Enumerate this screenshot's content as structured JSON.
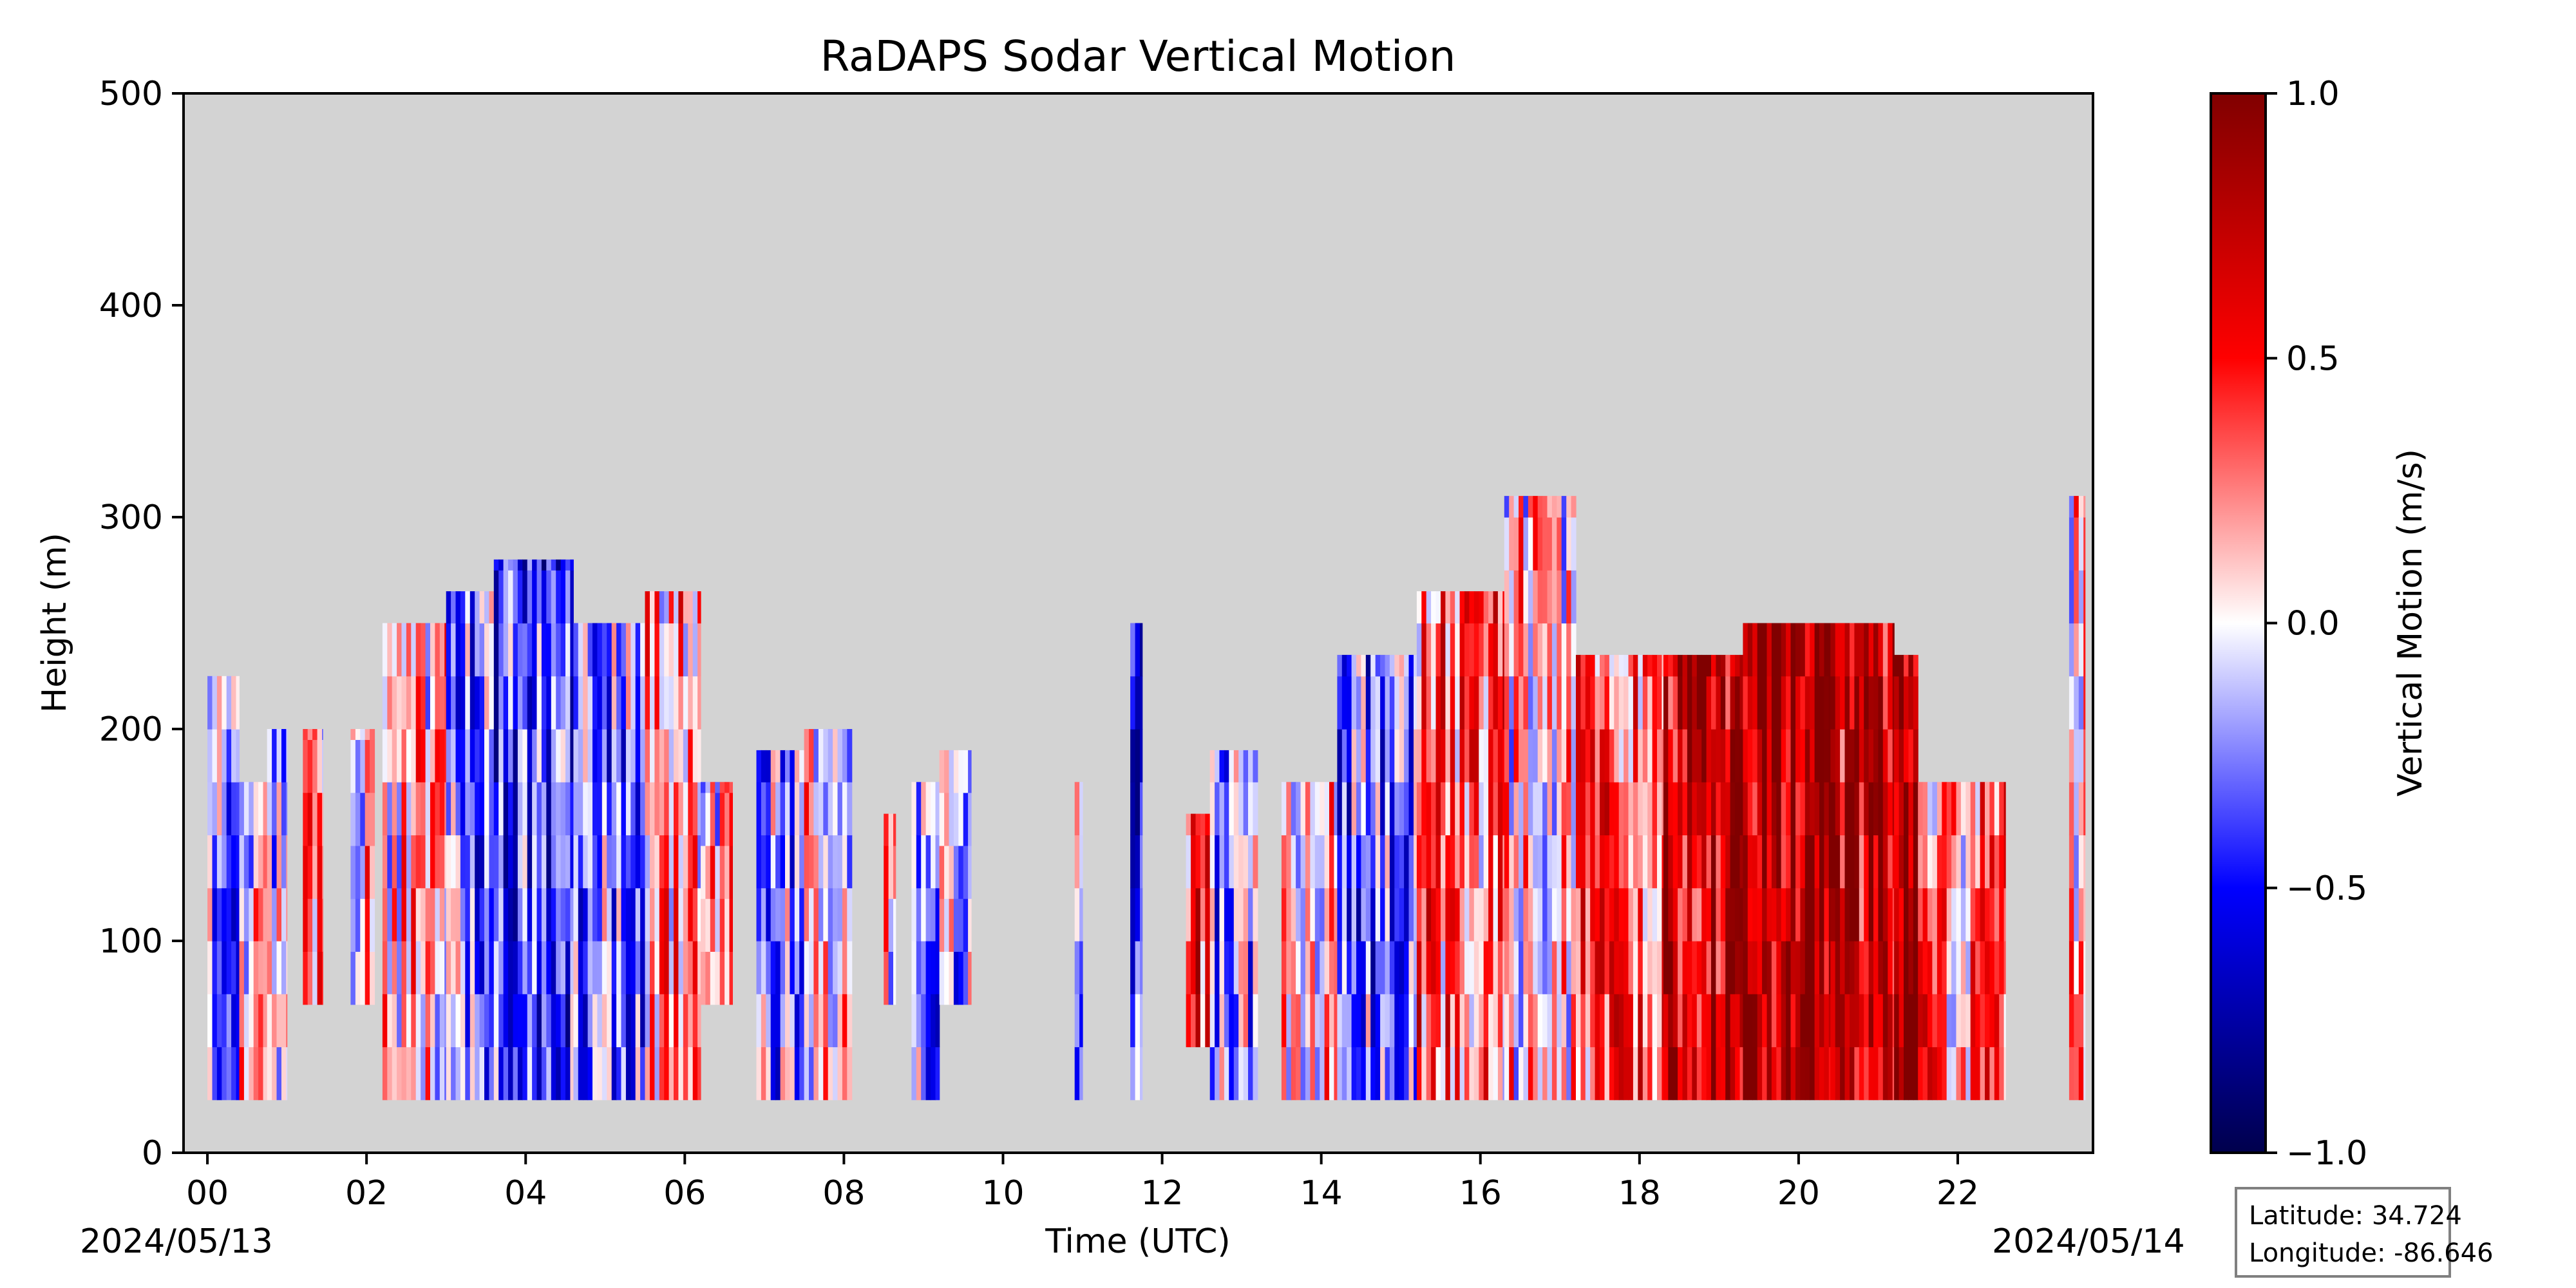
{
  "chart_data": {
    "type": "heatmap",
    "title": "RaDAPS Sodar Vertical Motion",
    "xlabel": "Time (UTC)",
    "ylabel": "Height (m)",
    "x_unit": "hours UTC",
    "xlim": [
      -0.3,
      23.7
    ],
    "ylim": [
      0,
      500
    ],
    "x_ticks": [
      "00",
      "02",
      "04",
      "06",
      "08",
      "10",
      "12",
      "14",
      "16",
      "18",
      "20",
      "22"
    ],
    "x_tick_values": [
      0,
      2,
      4,
      6,
      8,
      10,
      12,
      14,
      16,
      18,
      20,
      22
    ],
    "y_ticks": [
      0,
      100,
      200,
      300,
      400,
      500
    ],
    "date_start": "2024/05/13",
    "date_end": "2024/05/14",
    "missing_color": "#d3d3d3",
    "colorbar": {
      "label": "Vertical Motion (m/s)",
      "colormap": "seismic",
      "range": [
        -1.0,
        1.0
      ],
      "ticks": [
        "1.0",
        "0.5",
        "0.0",
        "−0.5",
        "−1.0"
      ],
      "tick_values": [
        1.0,
        0.5,
        0.0,
        -0.5,
        -1.0
      ]
    },
    "height_bins_m": [
      25,
      50,
      75,
      100,
      125,
      150,
      175,
      200,
      225,
      250,
      275,
      300
    ],
    "segments": [
      {
        "start": 0.0,
        "end": 0.4,
        "top": 225,
        "bottom": 25,
        "mean": -0.2
      },
      {
        "start": 0.4,
        "end": 0.75,
        "top": 175,
        "bottom": 25,
        "mean": 0.05
      },
      {
        "start": 0.75,
        "end": 1.0,
        "top": 200,
        "bottom": 25,
        "mean": -0.15
      },
      {
        "start": 1.2,
        "end": 1.45,
        "top": 200,
        "bottom": 70,
        "mean": 0.15
      },
      {
        "start": 1.8,
        "end": 2.1,
        "top": 200,
        "bottom": 70,
        "mean": 0.1
      },
      {
        "start": 2.2,
        "end": 3.0,
        "top": 250,
        "bottom": 25,
        "mean": 0.1
      },
      {
        "start": 3.0,
        "end": 3.6,
        "top": 265,
        "bottom": 25,
        "mean": -0.25
      },
      {
        "start": 3.6,
        "end": 4.6,
        "top": 280,
        "bottom": 25,
        "mean": -0.4
      },
      {
        "start": 4.6,
        "end": 5.5,
        "top": 250,
        "bottom": 25,
        "mean": -0.25
      },
      {
        "start": 5.5,
        "end": 6.2,
        "top": 265,
        "bottom": 25,
        "mean": 0.2
      },
      {
        "start": 6.2,
        "end": 6.6,
        "top": 175,
        "bottom": 70,
        "mean": 0.1
      },
      {
        "start": 6.9,
        "end": 7.5,
        "top": 190,
        "bottom": 25,
        "mean": -0.2
      },
      {
        "start": 7.5,
        "end": 8.1,
        "top": 200,
        "bottom": 25,
        "mean": 0.05
      },
      {
        "start": 8.5,
        "end": 8.65,
        "top": 160,
        "bottom": 70,
        "mean": 0.15
      },
      {
        "start": 8.85,
        "end": 9.2,
        "top": 175,
        "bottom": 25,
        "mean": -0.25
      },
      {
        "start": 9.2,
        "end": 9.6,
        "top": 190,
        "bottom": 70,
        "mean": -0.15
      },
      {
        "start": 10.9,
        "end": 11.0,
        "top": 175,
        "bottom": 25,
        "mean": -0.05
      },
      {
        "start": 11.6,
        "end": 11.75,
        "top": 250,
        "bottom": 25,
        "mean": -0.45
      },
      {
        "start": 12.3,
        "end": 12.6,
        "top": 160,
        "bottom": 50,
        "mean": 0.4
      },
      {
        "start": 12.6,
        "end": 13.2,
        "top": 190,
        "bottom": 25,
        "mean": -0.2
      },
      {
        "start": 13.5,
        "end": 14.2,
        "top": 175,
        "bottom": 25,
        "mean": 0.1
      },
      {
        "start": 14.2,
        "end": 15.2,
        "top": 235,
        "bottom": 25,
        "mean": -0.3
      },
      {
        "start": 15.2,
        "end": 16.3,
        "top": 265,
        "bottom": 25,
        "mean": 0.3
      },
      {
        "start": 16.3,
        "end": 17.2,
        "top": 310,
        "bottom": 25,
        "mean": 0.1
      },
      {
        "start": 17.2,
        "end": 18.3,
        "top": 235,
        "bottom": 25,
        "mean": 0.35
      },
      {
        "start": 18.3,
        "end": 19.3,
        "top": 235,
        "bottom": 25,
        "mean": 0.7
      },
      {
        "start": 19.3,
        "end": 20.4,
        "top": 250,
        "bottom": 25,
        "mean": 0.85
      },
      {
        "start": 20.4,
        "end": 21.2,
        "top": 250,
        "bottom": 25,
        "mean": 0.7
      },
      {
        "start": 21.2,
        "end": 21.5,
        "top": 235,
        "bottom": 25,
        "mean": 0.9
      },
      {
        "start": 21.5,
        "end": 22.6,
        "top": 175,
        "bottom": 25,
        "mean": 0.25
      },
      {
        "start": 23.4,
        "end": 23.6,
        "top": 310,
        "bottom": 25,
        "mean": 0.15
      }
    ]
  },
  "info_box": {
    "latitude": "Latitude: 34.724",
    "longitude": "Longitude: -86.646"
  }
}
